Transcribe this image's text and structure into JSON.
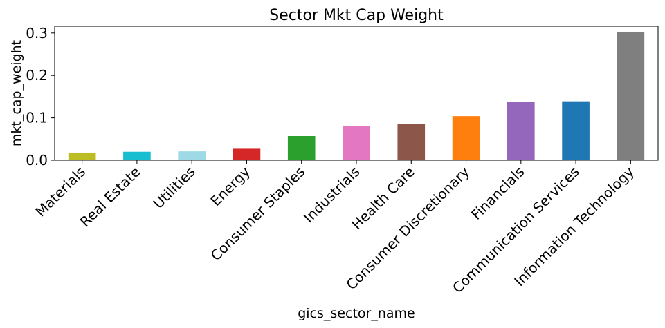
{
  "chart_data": {
    "type": "bar",
    "title": "Sector Mkt Cap Weight",
    "xlabel": "gics_sector_name",
    "ylabel": "mkt_cap_weight",
    "categories": [
      "Materials",
      "Real Estate",
      "Utilities",
      "Energy",
      "Consumer Staples",
      "Industrials",
      "Health Care",
      "Consumer Discretionary",
      "Financials",
      "Communication Services",
      "Information Technology"
    ],
    "values": [
      0.018,
      0.02,
      0.021,
      0.027,
      0.057,
      0.08,
      0.086,
      0.104,
      0.137,
      0.139,
      0.303
    ],
    "colors": [
      "#bcbd22",
      "#17becf",
      "#9edae5",
      "#d62728",
      "#2ca02c",
      "#e377c2",
      "#8c564b",
      "#ff7f0e",
      "#9467bd",
      "#1f77b4",
      "#7f7f7f"
    ],
    "ylim": [
      0,
      0.316
    ],
    "yticks": [
      {
        "value": 0,
        "label": "0.0"
      },
      0.1,
      0.2,
      0.3
    ],
    "grid": false
  }
}
